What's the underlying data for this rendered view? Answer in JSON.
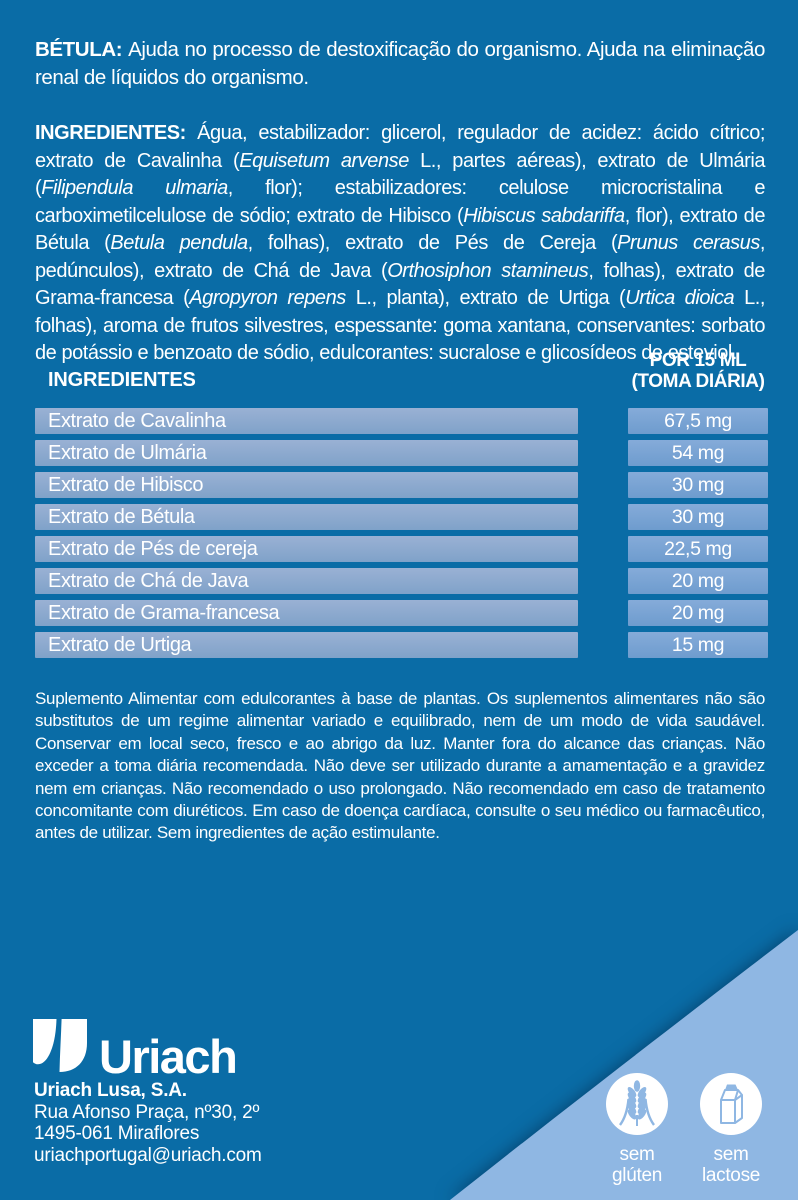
{
  "colors": {
    "background": "#0A6CA6",
    "corner": "#8FB7E3",
    "row_bar_top": "#9AB1D4",
    "row_bar_bottom": "#7FA2C9",
    "value_box_top": "#85ABD9",
    "value_box_bottom": "#6E9CCE",
    "text": "#FFFFFF"
  },
  "intro": {
    "segments": [
      {
        "text": "BÉTULA: ",
        "bold": true
      },
      {
        "text": "Ajuda no processo de destoxificação do organismo. Ajuda na eliminação renal de líquidos do organismo."
      }
    ]
  },
  "ingredients": {
    "segments": [
      {
        "text": "INGREDIENTES: ",
        "bold": true
      },
      {
        "text": "Água, estabilizador: glicerol, regulador de acidez: ácido cítrico; extrato de Cavalinha ("
      },
      {
        "text": "Equisetum arvense",
        "italic": true
      },
      {
        "text": " L., partes aéreas), extrato de Ulmária ("
      },
      {
        "text": "Filipendula ulmaria",
        "italic": true
      },
      {
        "text": ", flor); estabilizadores: celulose microcristalina e carboximetilcelulose de sódio; extrato de Hibisco ("
      },
      {
        "text": "Hibiscus sabdariffa",
        "italic": true
      },
      {
        "text": ", flor), extrato de Bétula ("
      },
      {
        "text": "Betula pendula",
        "italic": true
      },
      {
        "text": ", folhas), extrato de Pés de Cereja ("
      },
      {
        "text": "Prunus cerasus",
        "italic": true
      },
      {
        "text": ", pedúnculos), extrato de Chá de Java ("
      },
      {
        "text": "Orthosiphon stamineus",
        "italic": true
      },
      {
        "text": ", folhas), extrato de Grama-francesa ("
      },
      {
        "text": "Agropyron repens",
        "italic": true
      },
      {
        "text": " L., planta), extrato de Urtiga ("
      },
      {
        "text": "Urtica dioica",
        "italic": true
      },
      {
        "text": " L., folhas), aroma de frutos silvestres, espessante: goma xantana, conservantes: sorbato de potássio e benzoato de sódio, edulcorantes: sucralose e glicosídeos de esteviol."
      }
    ]
  },
  "table": {
    "header": {
      "left": "INGREDIENTES",
      "right_line1": "POR 15 ML",
      "right_line2": "(TOMA DIÁRIA)"
    },
    "rows": [
      {
        "name": "Extrato de Cavalinha",
        "value": "67,5 mg"
      },
      {
        "name": "Extrato de Ulmária",
        "value": "54 mg"
      },
      {
        "name": "Extrato de Hibisco",
        "value": "30 mg"
      },
      {
        "name": "Extrato de Bétula",
        "value": "30 mg"
      },
      {
        "name": "Extrato de Pés de cereja",
        "value": "22,5 mg"
      },
      {
        "name": "Extrato de Chá de Java",
        "value": "20 mg"
      },
      {
        "name": "Extrato de Grama-francesa",
        "value": "20 mg"
      },
      {
        "name": "Extrato de Urtiga",
        "value": "15 mg"
      }
    ]
  },
  "disclaimer": "Suplemento Alimentar com edulcorantes à base de plantas. Os suplementos alimentares não são substitutos de um regime alimentar variado e equilibrado, nem de um modo de vida saudável. Conservar em local seco, fresco e ao abrigo da luz. Manter fora do alcance das crianças. Não exceder a toma diária recomendada. Não deve ser utilizado durante a amamentação e a gravidez nem em crianças. Não recomendado o uso prolongado. Não recomendado em caso de tratamento concomitante com diuréticos. Em caso de doença cardíaca, consulte o seu médico ou farmacêutico, antes de utilizar. Sem ingredientes de ação estimulante.",
  "footer": {
    "wordmark": "Uriach",
    "company": "Uriach Lusa, S.A.",
    "address1": "Rua Afonso Praça, nº30, 2º",
    "address2": "1495-061 Miraflores",
    "email": "uriachportugal@uriach.com"
  },
  "badges": [
    {
      "icon": "wheat-icon",
      "line1": "sem",
      "line2": "glúten"
    },
    {
      "icon": "milk-carton-icon",
      "line1": "sem",
      "line2": "lactose"
    }
  ]
}
